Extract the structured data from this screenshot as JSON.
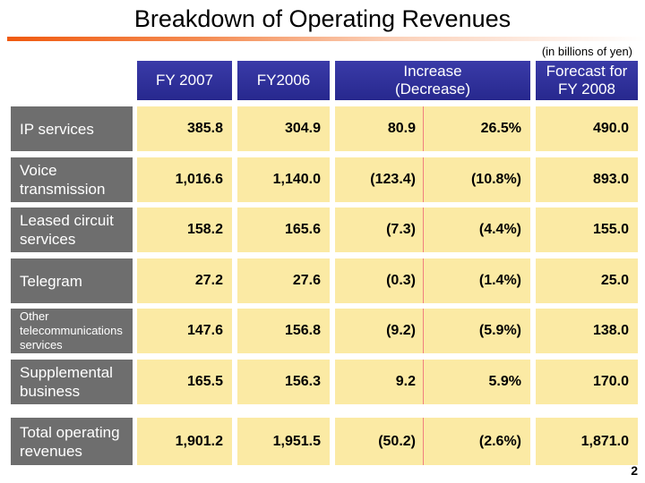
{
  "title": "Breakdown of Operating Revenues",
  "unit": "(in billions of yen)",
  "headers": [
    "FY 2007",
    "FY2006",
    "Increase\n(Decrease)",
    "Forecast for\nFY 2008"
  ],
  "rows": [
    {
      "label": "IP services",
      "fy2007": "385.8",
      "fy2006": "304.9",
      "inc": "80.9",
      "pct": "26.5%",
      "forecast": "490.0"
    },
    {
      "label": "Voice transmission",
      "fy2007": "1,016.6",
      "fy2006": "1,140.0",
      "inc": "(123.4)",
      "pct": "(10.8%)",
      "forecast": "893.0"
    },
    {
      "label": "Leased circuit services",
      "fy2007": "158.2",
      "fy2006": "165.6",
      "inc": "(7.3)",
      "pct": "(4.4%)",
      "forecast": "155.0"
    },
    {
      "label": "Telegram",
      "fy2007": "27.2",
      "fy2006": "27.6",
      "inc": "(0.3)",
      "pct": "(1.4%)",
      "forecast": "25.0"
    },
    {
      "label": "Other telecommunications services",
      "fy2007": "147.6",
      "fy2006": "156.8",
      "inc": "(9.2)",
      "pct": "(5.9%)",
      "forecast": "138.0"
    },
    {
      "label": "Supplemental business",
      "fy2007": "165.5",
      "fy2006": "156.3",
      "inc": "9.2",
      "pct": "5.9%",
      "forecast": "170.0"
    },
    {
      "label": "Total operating revenues",
      "fy2007": "1,901.2",
      "fy2006": "1,951.5",
      "inc": "(50.2)",
      "pct": "(2.6%)",
      "forecast": "1,871.0"
    }
  ],
  "page_number": "2",
  "colors": {
    "header_bg": "#2f309a",
    "label_bg": "#6e6e6e",
    "cell_bg": "#fbeaa4",
    "accent_rule": "#f05a10"
  }
}
